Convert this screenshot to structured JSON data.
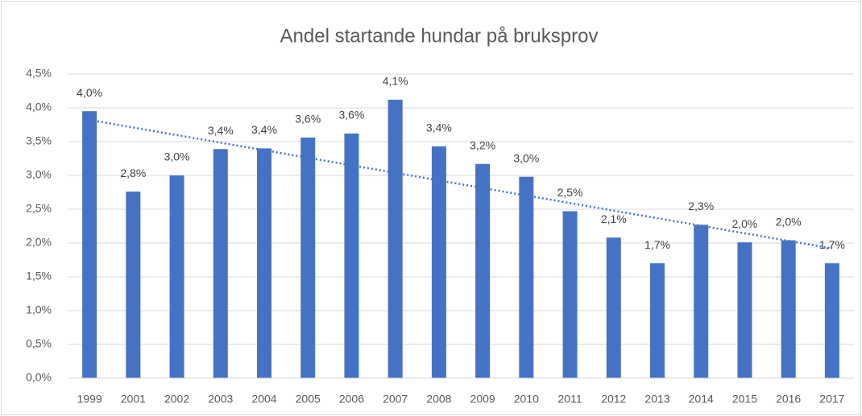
{
  "chart_data": {
    "type": "bar",
    "title": "Andel startande hundar på bruksprov",
    "categories": [
      "1999",
      "2001",
      "2002",
      "2003",
      "2004",
      "2005",
      "2006",
      "2007",
      "2008",
      "2009",
      "2010",
      "2011",
      "2012",
      "2013",
      "2014",
      "2015",
      "2016",
      "2017"
    ],
    "values": [
      3.95,
      2.76,
      3.0,
      3.39,
      3.4,
      3.56,
      3.62,
      4.12,
      3.43,
      3.17,
      2.98,
      2.47,
      2.08,
      1.7,
      2.27,
      2.01,
      2.04,
      1.7
    ],
    "value_labels": [
      "4,0%",
      "2,8%",
      "3,0%",
      "3,4%",
      "3,4%",
      "3,6%",
      "3,6%",
      "4,1%",
      "3,4%",
      "3,2%",
      "3,0%",
      "2,5%",
      "2,1%",
      "1,7%",
      "2,3%",
      "2,0%",
      "2,0%",
      "1,7%"
    ],
    "color": "#4472c4",
    "trendline": {
      "values": [
        3.82,
        1.92
      ],
      "color": "#4472c4"
    },
    "ylim": [
      0,
      4.5
    ],
    "yticks": [
      {
        "value": 0,
        "label": "0,0%"
      },
      {
        "value": 0.5,
        "label": "0,5%"
      },
      {
        "value": 1,
        "label": "1,0%"
      },
      {
        "value": 1.5,
        "label": "1,5%"
      },
      {
        "value": 2,
        "label": "2,0%"
      },
      {
        "value": 2.5,
        "label": "2,5%"
      },
      {
        "value": 3,
        "label": "3,0%"
      },
      {
        "value": 3.5,
        "label": "3,5%"
      },
      {
        "value": 4,
        "label": "4,0%"
      },
      {
        "value": 4.5,
        "label": "4,5%"
      }
    ],
    "grid": true
  }
}
